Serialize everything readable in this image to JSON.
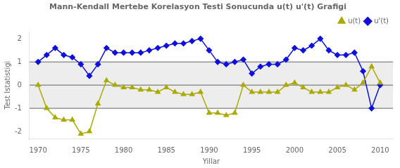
{
  "chart_data": {
    "type": "line",
    "title": "Mann-Kendall Mertebe Korelasyon Testi Sonucunda u(t) u'(t) Grafigi",
    "x_label": "Yillar",
    "y_label": "Test Istatistigi",
    "x": [
      1970,
      1971,
      1972,
      1973,
      1974,
      1975,
      1976,
      1977,
      1978,
      1979,
      1980,
      1981,
      1982,
      1983,
      1984,
      1985,
      1986,
      1987,
      1988,
      1989,
      1990,
      1991,
      1992,
      1993,
      1994,
      1995,
      1996,
      1997,
      1998,
      1999,
      2000,
      2001,
      2002,
      2003,
      2004,
      2005,
      2006,
      2007,
      2008,
      2009,
      2010
    ],
    "series": [
      {
        "name": "u(t)",
        "color": "#aaaa00",
        "marker": "triangle",
        "values": [
          0.0,
          -1.0,
          -1.4,
          -1.5,
          -1.5,
          -2.1,
          -2.0,
          -0.8,
          0.2,
          0.0,
          -0.1,
          -0.1,
          -0.2,
          -0.2,
          -0.3,
          -0.1,
          -0.3,
          -0.4,
          -0.4,
          -0.3,
          -1.2,
          -1.2,
          -1.3,
          -1.2,
          0.0,
          -0.3,
          -0.3,
          -0.3,
          -0.3,
          0.0,
          0.1,
          -0.1,
          -0.3,
          -0.3,
          -0.3,
          -0.1,
          0.0,
          -0.2,
          0.1,
          0.8,
          0.1
        ]
      },
      {
        "name": "u'(t)",
        "color": "#1010dd",
        "marker": "diamond",
        "values": [
          1.0,
          1.3,
          1.6,
          1.3,
          1.2,
          0.9,
          0.4,
          0.9,
          1.6,
          1.4,
          1.4,
          1.4,
          1.4,
          1.5,
          1.6,
          1.7,
          1.8,
          1.8,
          1.9,
          2.0,
          1.5,
          1.0,
          0.9,
          1.0,
          1.1,
          0.5,
          0.8,
          0.9,
          0.9,
          1.1,
          1.6,
          1.5,
          1.7,
          2.0,
          1.5,
          1.3,
          1.3,
          1.4,
          0.6,
          -1.0,
          0.0
        ]
      }
    ],
    "xlim": [
      1969.0,
      2011.5
    ],
    "ylim": [
      -2.3,
      2.3
    ],
    "xticks": [
      1970,
      1975,
      1980,
      1985,
      1990,
      1995,
      2000,
      2005,
      2010
    ],
    "yticks": [
      -2,
      -1,
      0,
      1,
      2
    ],
    "hlines": [
      -1.0,
      0.0,
      1.0
    ],
    "shading_band": [
      -1.0,
      1.0
    ],
    "grid": false,
    "legend": "upper right"
  }
}
